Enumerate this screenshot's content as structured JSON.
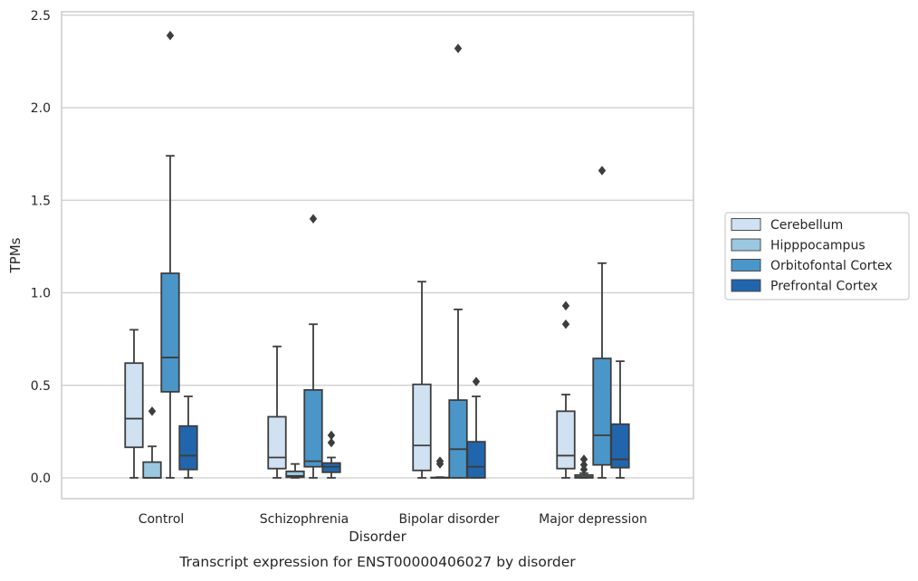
{
  "chart_data": {
    "type": "boxplot",
    "caption": "Transcript expression for ENST00000406027 by disorder",
    "xlabel": "Disorder",
    "ylabel": "TPMs",
    "ylim": [
      -0.12,
      2.52
    ],
    "yticks": [
      0.0,
      0.5,
      1.0,
      1.5,
      2.0,
      2.5
    ],
    "ytick_labels": [
      "0.0",
      "0.5",
      "1.0",
      "1.5",
      "2.0",
      "2.5"
    ],
    "grid": "horizontal",
    "legend_position": "right",
    "categories": [
      "Control",
      "Schizophrenia",
      "Bipolar disorder",
      "Major depression"
    ],
    "series": [
      {
        "name": "Cerebellum",
        "color": "#d0e1f2",
        "boxes": [
          {
            "whislo": 0.0,
            "q1": 0.165,
            "med": 0.32,
            "q3": 0.62,
            "whishi": 0.8,
            "fliers": []
          },
          {
            "whislo": 0.0,
            "q1": 0.05,
            "med": 0.11,
            "q3": 0.33,
            "whishi": 0.71,
            "fliers": []
          },
          {
            "whislo": 0.0,
            "q1": 0.04,
            "med": 0.175,
            "q3": 0.505,
            "whishi": 1.06,
            "fliers": []
          },
          {
            "whislo": 0.0,
            "q1": 0.05,
            "med": 0.12,
            "q3": 0.36,
            "whishi": 0.45,
            "fliers": [
              0.83,
              0.93
            ]
          }
        ]
      },
      {
        "name": "Hipppocampus",
        "color": "#9ac8e0",
        "boxes": [
          {
            "whislo": 0.0,
            "q1": 0.0,
            "med": 0.0,
            "q3": 0.085,
            "whishi": 0.17,
            "fliers": [
              0.36
            ]
          },
          {
            "whislo": 0.0,
            "q1": 0.003,
            "med": 0.01,
            "q3": 0.035,
            "whishi": 0.075,
            "fliers": []
          },
          {
            "whislo": 0.0,
            "q1": 0.0,
            "med": 0.0,
            "q3": 0.002,
            "whishi": 0.004,
            "fliers": [
              0.075,
              0.09
            ]
          },
          {
            "whislo": 0.0,
            "q1": 0.0,
            "med": 0.005,
            "q3": 0.015,
            "whishi": 0.025,
            "fliers": [
              0.045,
              0.07,
              0.1
            ]
          }
        ]
      },
      {
        "name": "Orbitofontal Cortex",
        "color": "#4a96c9",
        "boxes": [
          {
            "whislo": 0.0,
            "q1": 0.465,
            "med": 0.65,
            "q3": 1.105,
            "whishi": 1.74,
            "fliers": [
              2.39
            ]
          },
          {
            "whislo": 0.0,
            "q1": 0.06,
            "med": 0.09,
            "q3": 0.475,
            "whishi": 0.83,
            "fliers": [
              1.4
            ]
          },
          {
            "whislo": 0.0,
            "q1": 0.0,
            "med": 0.155,
            "q3": 0.42,
            "whishi": 0.91,
            "fliers": [
              2.32
            ]
          },
          {
            "whislo": 0.0,
            "q1": 0.07,
            "med": 0.23,
            "q3": 0.645,
            "whishi": 1.16,
            "fliers": [
              1.66
            ]
          }
        ]
      },
      {
        "name": "Prefrontal Cortex",
        "color": "#2166ac",
        "boxes": [
          {
            "whislo": 0.0,
            "q1": 0.045,
            "med": 0.12,
            "q3": 0.28,
            "whishi": 0.44,
            "fliers": []
          },
          {
            "whislo": 0.0,
            "q1": 0.03,
            "med": 0.06,
            "q3": 0.08,
            "whishi": 0.11,
            "fliers": [
              0.19,
              0.23
            ]
          },
          {
            "whislo": 0.0,
            "q1": 0.0,
            "med": 0.06,
            "q3": 0.195,
            "whishi": 0.44,
            "fliers": [
              0.52
            ]
          },
          {
            "whislo": 0.0,
            "q1": 0.055,
            "med": 0.1,
            "q3": 0.29,
            "whishi": 0.63,
            "fliers": []
          }
        ]
      }
    ]
  }
}
